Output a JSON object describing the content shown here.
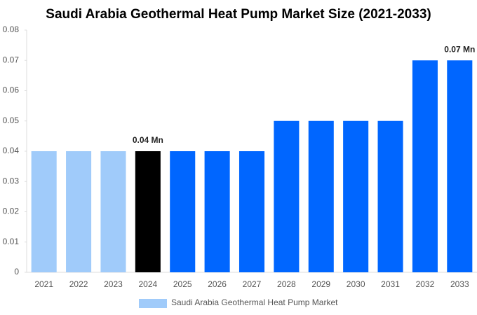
{
  "chart_data": {
    "type": "bar",
    "title": "Saudi Arabia Geothermal Heat Pump Market Size (2021-2033)",
    "categories": [
      "2021",
      "2022",
      "2023",
      "2024",
      "2025",
      "2026",
      "2027",
      "2028",
      "2029",
      "2030",
      "2031",
      "2032",
      "2033"
    ],
    "series": [
      {
        "name": "Saudi Arabia Geothermal Heat Pump Market",
        "color": "#a0cbfa",
        "values": [
          0.04,
          0.04,
          0.04,
          0.04,
          0.04,
          0.04,
          0.04,
          0.05,
          0.05,
          0.05,
          0.05,
          0.07,
          0.07
        ],
        "colors": [
          "#a0cbfa",
          "#a0cbfa",
          "#a0cbfa",
          "#000000",
          "#0066ff",
          "#0066ff",
          "#0066ff",
          "#0066ff",
          "#0066ff",
          "#0066ff",
          "#0066ff",
          "#0066ff",
          "#0066ff"
        ],
        "value_labels": [
          null,
          null,
          null,
          "0.04 Mn",
          null,
          null,
          null,
          null,
          null,
          null,
          null,
          null,
          "0.07 Mn"
        ]
      }
    ],
    "ylim": [
      0,
      0.08
    ],
    "yticks": [
      0,
      0.01,
      0.02,
      0.03,
      0.04,
      0.05,
      0.06,
      0.07,
      0.08
    ],
    "grid": false
  }
}
